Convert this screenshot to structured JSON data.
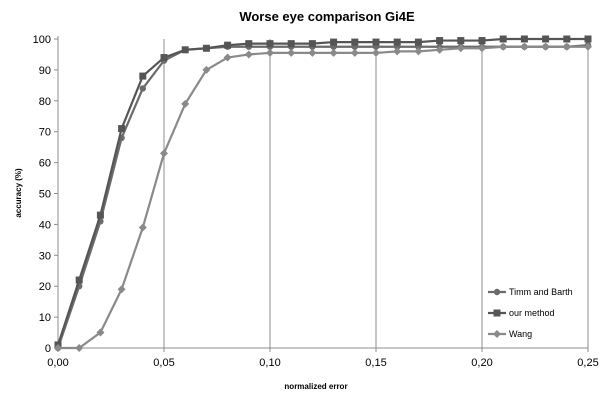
{
  "chart_data": {
    "type": "line",
    "title": "Worse eye comparison Gi4E",
    "xlabel": "normalized error",
    "ylabel": "accuracy (%)",
    "xlim": [
      0,
      0.25
    ],
    "ylim": [
      0,
      100
    ],
    "x_tick_labels": [
      "0,00",
      "0,05",
      "0,10",
      "0,15",
      "0,20",
      "0,25"
    ],
    "y_tick_labels": [
      "0",
      "10",
      "20",
      "30",
      "40",
      "50",
      "60",
      "70",
      "80",
      "90",
      "100"
    ],
    "grid": "vertical",
    "legend_position": "bottom-right",
    "x": [
      0,
      0.01,
      0.02,
      0.03,
      0.04,
      0.05,
      0.06,
      0.07,
      0.08,
      0.09,
      0.1,
      0.11,
      0.12,
      0.13,
      0.14,
      0.15,
      0.16,
      0.17,
      0.18,
      0.19,
      0.2,
      0.21,
      0.22,
      0.23,
      0.24,
      0.25
    ],
    "series": [
      {
        "name": "Timm and Barth",
        "marker": "circle",
        "color": "#6b6b6b",
        "values": [
          0,
          20,
          41,
          68,
          84,
          93,
          96.5,
          97,
          97.5,
          97.5,
          97.5,
          97.5,
          97.5,
          97.5,
          97.5,
          97.5,
          97.5,
          97.5,
          97.5,
          97.5,
          97.5,
          97.5,
          97.5,
          97.5,
          97.5,
          98
        ]
      },
      {
        "name": "our method",
        "marker": "square",
        "color": "#555555",
        "values": [
          1,
          22,
          43,
          71,
          88,
          94,
          96.5,
          97,
          98,
          98.5,
          98.5,
          98.5,
          98.5,
          99,
          99,
          99,
          99,
          99,
          99.5,
          99.5,
          99.5,
          100,
          100,
          100,
          100,
          100
        ]
      },
      {
        "name": "Wang",
        "marker": "diamond",
        "color": "#8a8a8a",
        "values": [
          0,
          0,
          5,
          19,
          39,
          63,
          79,
          90,
          94,
          95,
          95.5,
          95.5,
          95.5,
          95.5,
          95.5,
          95.5,
          96,
          96,
          96.5,
          97,
          97,
          97.5,
          97.5,
          97.5,
          97.5,
          97.5
        ]
      }
    ]
  }
}
